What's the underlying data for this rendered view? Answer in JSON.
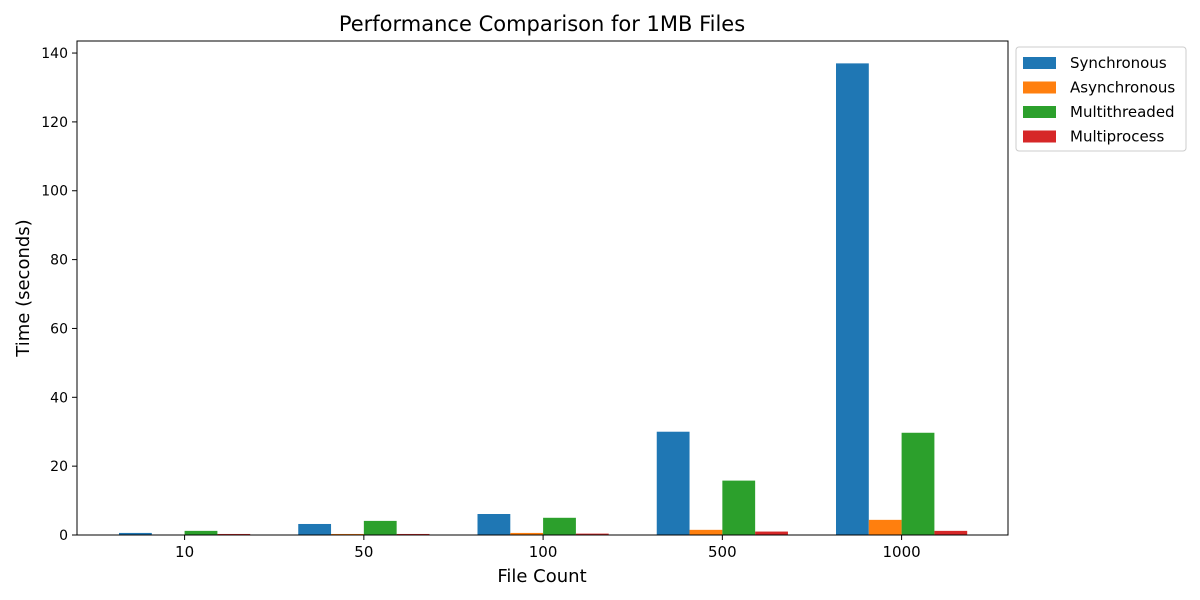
{
  "chart_data": {
    "type": "bar",
    "title": "Performance Comparison for 1MB Files",
    "xlabel": "File Count",
    "ylabel": "Time (seconds)",
    "categories": [
      "10",
      "50",
      "100",
      "500",
      "1000"
    ],
    "ylim": [
      0,
      143.5
    ],
    "yticks": [
      0,
      20,
      40,
      60,
      80,
      100,
      120,
      140
    ],
    "grid": false,
    "legend_position": "outside top-right",
    "series": [
      {
        "name": "Synchronous",
        "color": "#1f77b4",
        "values": [
          0.6,
          3.2,
          6.1,
          30.0,
          137.0
        ]
      },
      {
        "name": "Asynchronous",
        "color": "#ff7f0e",
        "values": [
          0.1,
          0.3,
          0.6,
          1.5,
          4.4
        ]
      },
      {
        "name": "Multithreaded",
        "color": "#2ca02c",
        "values": [
          1.2,
          4.1,
          5.0,
          15.8,
          29.7
        ]
      },
      {
        "name": "Multiprocess",
        "color": "#d62728",
        "values": [
          0.3,
          0.3,
          0.4,
          1.0,
          1.2
        ]
      }
    ]
  }
}
